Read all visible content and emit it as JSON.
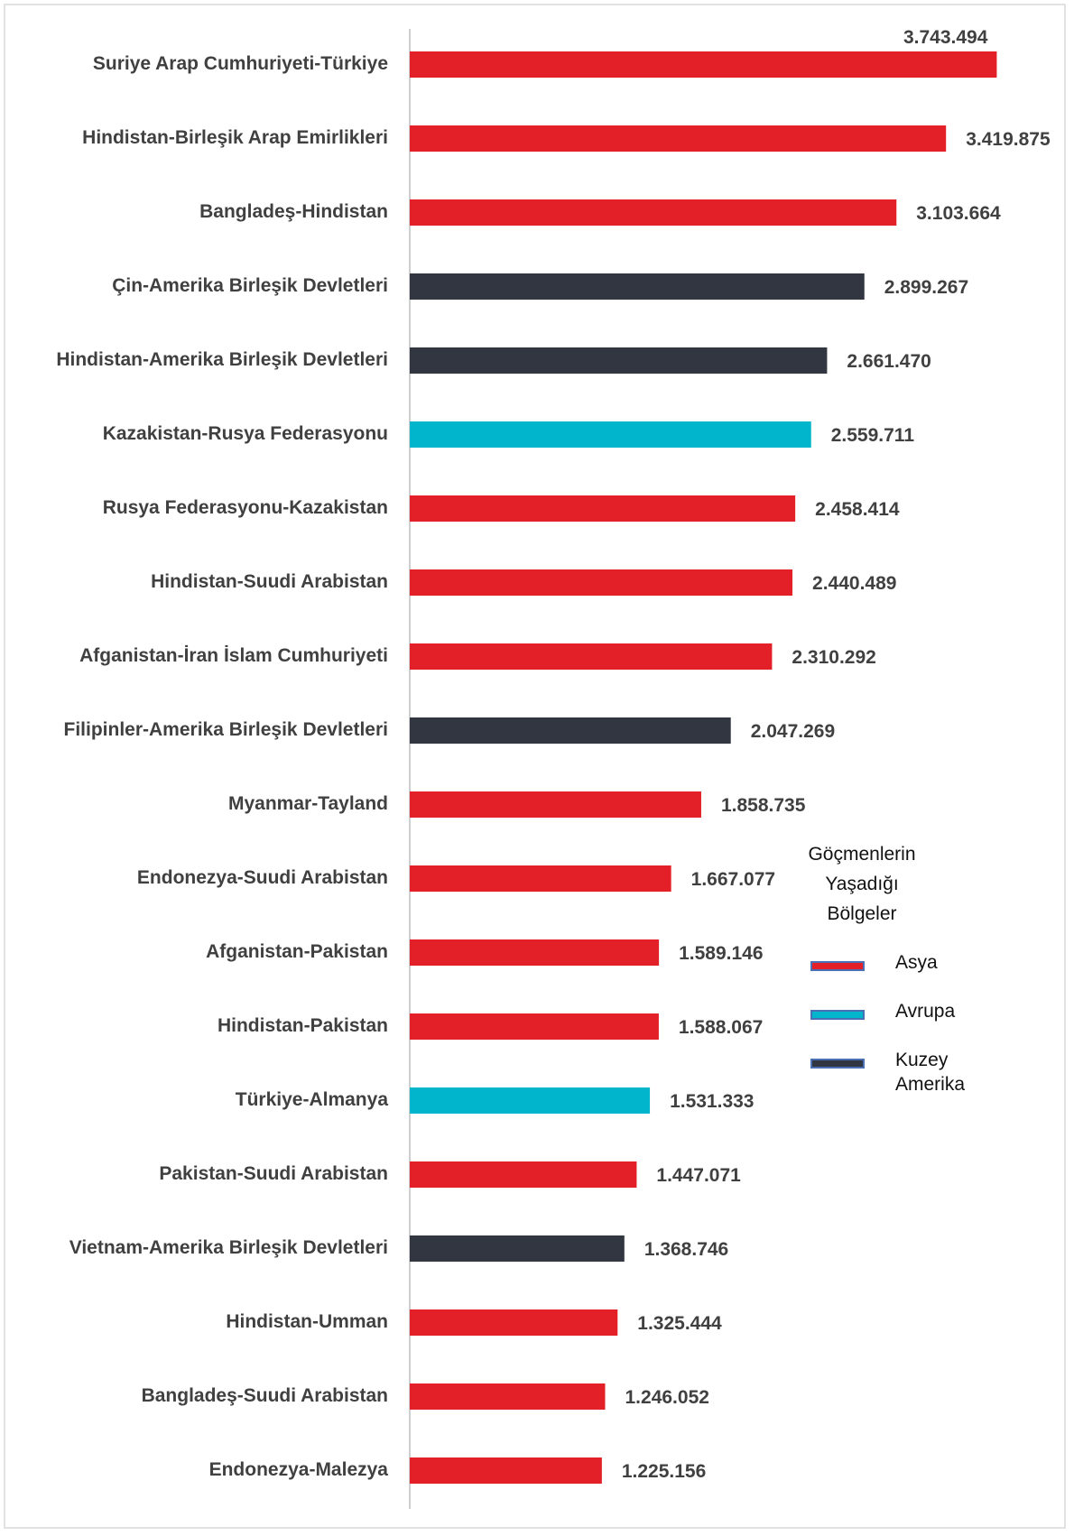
{
  "chart_data": {
    "type": "hbar",
    "categories": [
      "Suriye Arap Cumhuriyeti-Türkiye",
      "Hindistan-Birleşik Arap Emirlikleri",
      "Bangladeş-Hindistan",
      "Çin-Amerika Birleşik Devletleri",
      "Hindistan-Amerika Birleşik Devletleri",
      "Kazakistan-Rusya Federasyonu",
      "Rusya Federasyonu-Kazakistan",
      "Hindistan-Suudi Arabistan",
      "Afganistan-İran İslam Cumhuriyeti",
      "Filipinler-Amerika Birleşik Devletleri",
      "Myanmar-Tayland",
      "Endonezya-Suudi Arabistan",
      "Afganistan-Pakistan",
      "Hindistan-Pakistan",
      "Türkiye-Almanya",
      "Pakistan-Suudi Arabistan",
      "Vietnam-Amerika Birleşik Devletleri",
      "Hindistan-Umman",
      "Bangladeş-Suudi Arabistan",
      "Endonezya-Malezya"
    ],
    "series": [
      {
        "name": "Asya",
        "color": "#e32028",
        "values": [
          3743494,
          3419875,
          3103664,
          null,
          null,
          null,
          2458414,
          2440489,
          2310292,
          null,
          1858735,
          1667077,
          1589146,
          1588067,
          null,
          1447071,
          null,
          1325444,
          1246052,
          1225156
        ],
        "value_labels": [
          "3.743.494",
          "3.419.875",
          "3.103.664",
          null,
          null,
          null,
          "2.458.414",
          "2.440.489",
          "2.310.292",
          null,
          "1.858.735",
          "1.667.077",
          "1.589.146",
          "1.588.067",
          null,
          "1.447.071",
          null,
          "1.325.444",
          "1.246.052",
          "1.225.156"
        ]
      },
      {
        "name": "Avrupa",
        "color": "#00b5cc",
        "values": [
          null,
          null,
          null,
          null,
          null,
          2559711,
          null,
          null,
          null,
          null,
          null,
          null,
          null,
          null,
          1531333,
          null,
          null,
          null,
          null,
          null
        ],
        "value_labels": [
          null,
          null,
          null,
          null,
          null,
          "2.559.711",
          null,
          null,
          null,
          null,
          null,
          null,
          null,
          null,
          "1.531.333",
          null,
          null,
          null,
          null,
          null
        ]
      },
      {
        "name": "Kuzey Amerika",
        "color": "#323641",
        "values": [
          null,
          null,
          null,
          2899267,
          2661470,
          null,
          null,
          null,
          null,
          2047269,
          null,
          null,
          null,
          null,
          null,
          null,
          1368746,
          null,
          null,
          null
        ],
        "value_labels": [
          null,
          null,
          null,
          "2.899.267",
          "2.661.470",
          null,
          null,
          null,
          null,
          "2.047.269",
          null,
          null,
          null,
          null,
          null,
          null,
          "1.368.746",
          null,
          null,
          null
        ]
      }
    ],
    "legend_title": "Göçmenlerin Yaşadığı Bölgeler",
    "xlim": [
      0,
      4000000
    ]
  }
}
